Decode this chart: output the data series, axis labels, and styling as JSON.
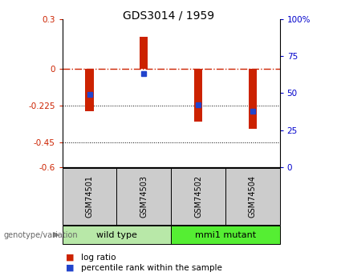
{
  "title": "GDS3014 / 1959",
  "samples": [
    "GSM74501",
    "GSM74503",
    "GSM74502",
    "GSM74504"
  ],
  "log_ratios": [
    -0.258,
    0.195,
    -0.325,
    -0.365
  ],
  "percentile_ranks": [
    49,
    63,
    42,
    38
  ],
  "bar_color": "#cc2200",
  "dot_color": "#2244cc",
  "ylim_left": [
    -0.6,
    0.3
  ],
  "ylim_right": [
    0,
    100
  ],
  "left_ticks": [
    0.3,
    0,
    -0.225,
    -0.45,
    -0.6
  ],
  "right_ticks": [
    100,
    75,
    50,
    25,
    0
  ],
  "bg_color": "#ffffff",
  "zero_line_color": "#cc2200",
  "left_tick_color": "#cc2200",
  "right_tick_color": "#0000cc",
  "wild_type_color": "#b8e8a8",
  "mmi1_color": "#55ee33",
  "sample_box_color": "#cccccc",
  "bar_width": 0.15
}
